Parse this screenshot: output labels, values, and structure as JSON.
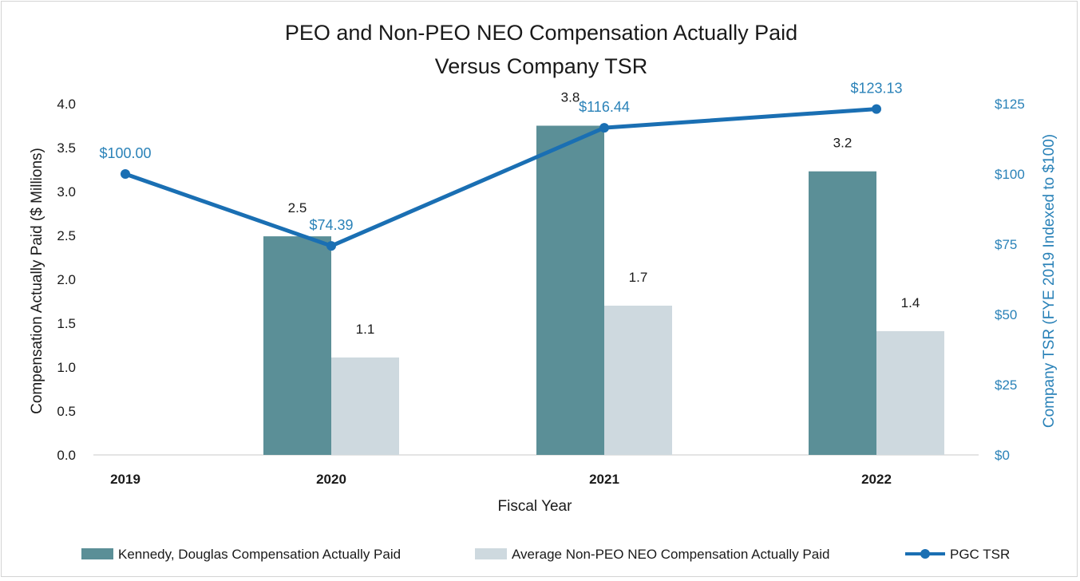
{
  "chart_data": {
    "type": "bar",
    "title": [
      "PEO and Non-PEO NEO Compensation Actually Paid",
      "Versus Company TSR"
    ],
    "xlabel": "Fiscal Year",
    "ylabel": "Compensation Actually Paid ($ Millions)",
    "y2label": "Company TSR (FYE 2019 Indexed to $100)",
    "categories": [
      "2019",
      "2020",
      "2021",
      "2022"
    ],
    "ylim": [
      0,
      4.0
    ],
    "yticks": [
      "0.0",
      "0.5",
      "1.0",
      "1.5",
      "2.0",
      "2.5",
      "3.0",
      "3.5",
      "4.0"
    ],
    "y2lim": [
      0,
      125
    ],
    "y2ticks": [
      "$0",
      "$25",
      "$50",
      "$75",
      "$100",
      "$125"
    ],
    "series": [
      {
        "name": "Kennedy, Douglas Compensation Actually Paid",
        "kind": "bar",
        "color": "#5b8f97",
        "values": [
          null,
          2.49,
          3.75,
          3.23
        ],
        "labels": [
          "",
          "2.5",
          "3.8",
          "3.2"
        ]
      },
      {
        "name": "Average Non-PEO NEO Compensation Actually Paid",
        "kind": "bar",
        "color": "#ced9df",
        "values": [
          null,
          1.11,
          1.7,
          1.41
        ],
        "labels": [
          "",
          "1.1",
          "1.7",
          "1.4"
        ]
      },
      {
        "name": "PGC TSR",
        "kind": "line",
        "axis": "right",
        "color": "#1a6fb3",
        "values": [
          100.0,
          74.39,
          116.44,
          123.13
        ],
        "labels": [
          "$100.00",
          "$74.39",
          "$116.44",
          "$123.13"
        ]
      }
    ],
    "legend": "bottom"
  }
}
